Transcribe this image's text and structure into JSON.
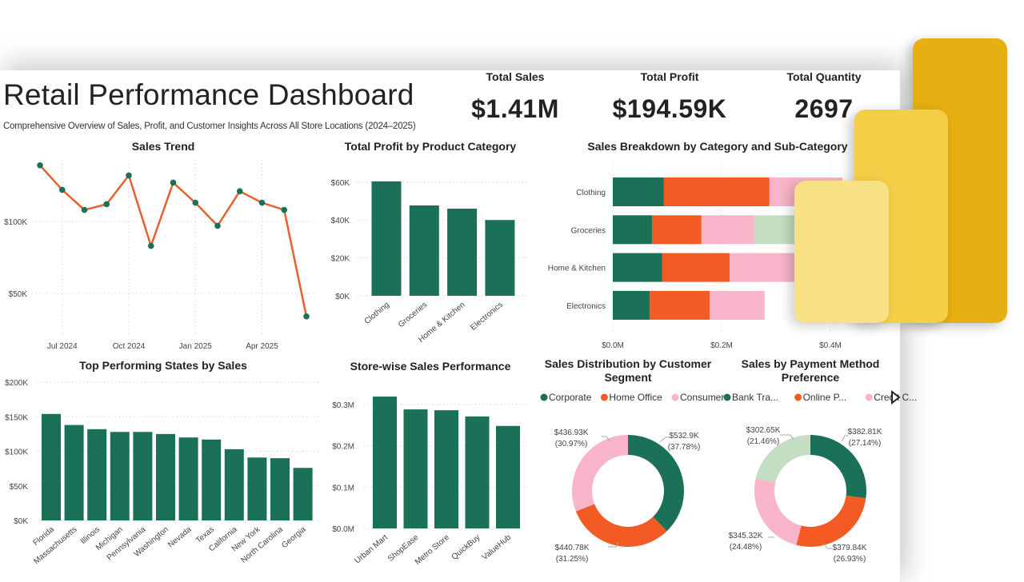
{
  "header": {
    "title": "Retail Performance Dashboard",
    "subtitle": "Comprehensive Overview of Sales, Profit, and Customer Insights Across All Store Locations (2024–2025)"
  },
  "kpis": [
    {
      "label": "Total Sales",
      "value": "$1.41M"
    },
    {
      "label": "Total Profit",
      "value": "$194.59K"
    },
    {
      "label": "Total Quantity",
      "value": "2697"
    }
  ],
  "colors": {
    "green": "#1B7158",
    "orange": "#F45A24",
    "pink": "#F8B4C8",
    "light_green": "#C3DEC3",
    "line": "#E8602C"
  },
  "logo": {
    "icon": "power-bi-logo",
    "colors": [
      "#E6AF12",
      "#F3CF47",
      "#F8E185"
    ]
  },
  "legend_scroll_icon": "triangle-right-icon",
  "chart_data": [
    {
      "id": "sales_trend",
      "type": "line",
      "title": "Sales Trend",
      "x": [
        "Jun 2024",
        "Jul 2024",
        "Aug 2024",
        "Sep 2024",
        "Oct 2024",
        "Nov 2024",
        "Dec 2024",
        "Jan 2025",
        "Feb 2025",
        "Mar 2025",
        "Apr 2025",
        "May 2025",
        "Jun 2025"
      ],
      "values": [
        139,
        122,
        108,
        112,
        132,
        83,
        127,
        113,
        97,
        121,
        113,
        108,
        34
      ],
      "unit": "K USD",
      "x_ticks": [
        "Jul 2024",
        "Oct 2024",
        "Jan 2025",
        "Apr 2025"
      ],
      "y_ticks": [
        {
          "v": 50,
          "label": "$50K"
        },
        {
          "v": 100,
          "label": "$100K"
        }
      ],
      "grid": true
    },
    {
      "id": "profit_by_category",
      "type": "bar",
      "title": "Total Profit by Product Category",
      "categories": [
        "Clothing",
        "Groceries",
        "Home & Kitchen",
        "Electronics"
      ],
      "values": [
        60.4,
        47.7,
        46.0,
        40.0
      ],
      "unit": "K USD",
      "y_ticks": [
        {
          "v": 0,
          "label": "$0K"
        },
        {
          "v": 20,
          "label": "$20K"
        },
        {
          "v": 40,
          "label": "$40K"
        },
        {
          "v": 60,
          "label": "$60K"
        }
      ],
      "grid": true
    },
    {
      "id": "sales_breakdown",
      "type": "bar",
      "orientation": "horizontal-stacked",
      "title": "Sales Breakdown by Category and Sub-Category",
      "categories": [
        "Clothing",
        "Groceries",
        "Home & Kitchen",
        "Electronics"
      ],
      "stacks": [
        [
          0.094,
          0.194,
          0.134
        ],
        [
          0.072,
          0.091,
          0.097,
          0.08
        ],
        [
          0.091,
          0.124,
          0.155
        ],
        [
          0.068,
          0.11,
          0.101
        ]
      ],
      "unit": "M USD",
      "x_ticks": [
        {
          "v": 0,
          "label": "$0.0M"
        },
        {
          "v": 0.2,
          "label": "$0.2M"
        },
        {
          "v": 0.4,
          "label": "$0.4M"
        }
      ],
      "grid": true
    },
    {
      "id": "states",
      "type": "bar",
      "title": "Top Performing States by Sales",
      "categories": [
        "Florida",
        "Massachusetts",
        "Illinois",
        "Michigan",
        "Pennsylvania",
        "Washington",
        "Nevada",
        "Texas",
        "California",
        "New York",
        "North Carolina",
        "Georgia"
      ],
      "values": [
        154,
        138,
        132,
        128,
        128,
        125,
        120,
        117,
        103,
        91,
        90,
        76
      ],
      "unit": "K USD",
      "y_ticks": [
        {
          "v": 0,
          "label": "$0K"
        },
        {
          "v": 50,
          "label": "$50K"
        },
        {
          "v": 100,
          "label": "$100K"
        },
        {
          "v": 150,
          "label": "$150K"
        },
        {
          "v": 200,
          "label": "$200K"
        }
      ],
      "grid": true
    },
    {
      "id": "stores",
      "type": "bar",
      "title": "Store-wise Sales Performance",
      "categories": [
        "Urban Mart",
        "ShopEase",
        "Metro Store",
        "QuickBuy",
        "ValueHub"
      ],
      "values": [
        0.319,
        0.288,
        0.286,
        0.271,
        0.248
      ],
      "unit": "M USD",
      "y_ticks": [
        {
          "v": 0,
          "label": "$0.0M"
        },
        {
          "v": 0.1,
          "label": "$0.1M"
        },
        {
          "v": 0.2,
          "label": "$0.2M"
        },
        {
          "v": 0.3,
          "label": "$0.3M"
        }
      ],
      "grid": true
    },
    {
      "id": "segment",
      "type": "pie",
      "donut": true,
      "title": "Sales Distribution by Customer Segment",
      "legend_placement": "top",
      "slices": [
        {
          "name": "Corporate",
          "value": 532.9,
          "label": "$532.9K",
          "pct": "(37.78%)",
          "color": "#1B7158"
        },
        {
          "name": "Home Office",
          "value": 440.78,
          "label": "$440.78K",
          "pct": "(31.25%)",
          "color": "#F45A24"
        },
        {
          "name": "Consumer",
          "value": 436.93,
          "label": "$436.93K",
          "pct": "(30.97%)",
          "color": "#F8B4C8"
        }
      ]
    },
    {
      "id": "payment",
      "type": "pie",
      "donut": true,
      "title": "Sales by Payment Method Preference",
      "legend_placement": "top",
      "slices": [
        {
          "name": "Bank Tra...",
          "value": 382.81,
          "label": "$382.81K",
          "pct": "(27.14%)",
          "color": "#1B7158"
        },
        {
          "name": "Online P...",
          "value": 379.84,
          "label": "$379.84K",
          "pct": "(26.93%)",
          "color": "#F45A24"
        },
        {
          "name": "Credit C...",
          "value": 345.32,
          "label": "$345.32K",
          "pct": "(24.48%)",
          "color": "#F8B4C8"
        },
        {
          "value": 302.65,
          "label": "$302.65K",
          "pct": "(21.46%)",
          "color": "#C3DEC3"
        }
      ]
    }
  ]
}
